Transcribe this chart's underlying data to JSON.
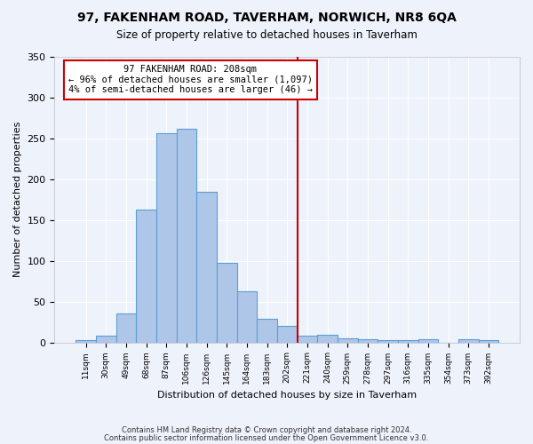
{
  "title": "97, FAKENHAM ROAD, TAVERHAM, NORWICH, NR8 6QA",
  "subtitle": "Size of property relative to detached houses in Taverham",
  "xlabel": "Distribution of detached houses by size in Taverham",
  "ylabel": "Number of detached properties",
  "bar_labels": [
    "11sqm",
    "30sqm",
    "49sqm",
    "68sqm",
    "87sqm",
    "106sqm",
    "126sqm",
    "145sqm",
    "164sqm",
    "183sqm",
    "202sqm",
    "221sqm",
    "240sqm",
    "259sqm",
    "278sqm",
    "297sqm",
    "316sqm",
    "335sqm",
    "354sqm",
    "373sqm",
    "392sqm"
  ],
  "bar_heights": [
    3,
    8,
    35,
    163,
    256,
    262,
    185,
    97,
    63,
    29,
    20,
    8,
    9,
    5,
    4,
    3,
    3,
    4,
    0,
    4,
    3
  ],
  "bar_color": "#aec6e8",
  "bar_edge_color": "#5a9fd4",
  "vline_x": 10.5,
  "vline_color": "#cc0000",
  "annotation_text": "97 FAKENHAM ROAD: 208sqm\n← 96% of detached houses are smaller (1,097)\n4% of semi-detached houses are larger (46) →",
  "annotation_box_color": "#cc0000",
  "ylim": [
    0,
    350
  ],
  "yticks": [
    0,
    50,
    100,
    150,
    200,
    250,
    300,
    350
  ],
  "footer1": "Contains HM Land Registry data © Crown copyright and database right 2024.",
  "footer2": "Contains public sector information licensed under the Open Government Licence v3.0.",
  "background_color": "#eef2fb",
  "plot_bg_color": "#eef2fb"
}
